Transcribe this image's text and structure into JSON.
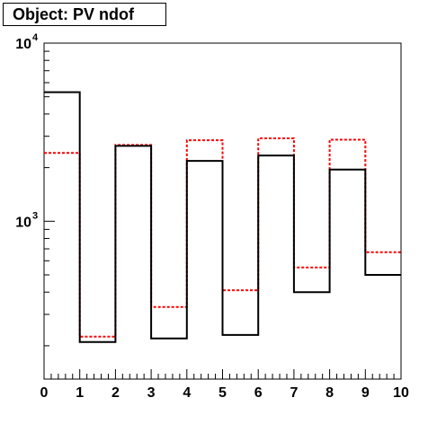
{
  "title": "Object: PV ndof",
  "chart_data": {
    "type": "histogram",
    "title": "Object: PV ndof",
    "xlabel": "",
    "ylabel": "",
    "xlim": [
      0,
      10
    ],
    "ylim": [
      130,
      10000
    ],
    "y_scale": "log",
    "x_ticks": [
      "0",
      "1",
      "2",
      "3",
      "4",
      "5",
      "6",
      "7",
      "8",
      "9",
      "10"
    ],
    "y_ticks": [
      {
        "base": "10",
        "exp": "3",
        "value": 1000
      },
      {
        "base": "10",
        "exp": "4",
        "value": 10000
      }
    ],
    "bin_edges": [
      0,
      1,
      2,
      3,
      4,
      5,
      6,
      7,
      8,
      9,
      10
    ],
    "series": [
      {
        "color": "#000000",
        "style": "solid",
        "values": [
          5300,
          210,
          2650,
          220,
          2180,
          230,
          2340,
          400,
          1950,
          500
        ]
      },
      {
        "color": "#ff0000",
        "style": "dashed",
        "values": [
          2420,
          225,
          2680,
          330,
          2850,
          410,
          2920,
          550,
          2870,
          670
        ]
      }
    ],
    "legend": false,
    "grid": false
  }
}
